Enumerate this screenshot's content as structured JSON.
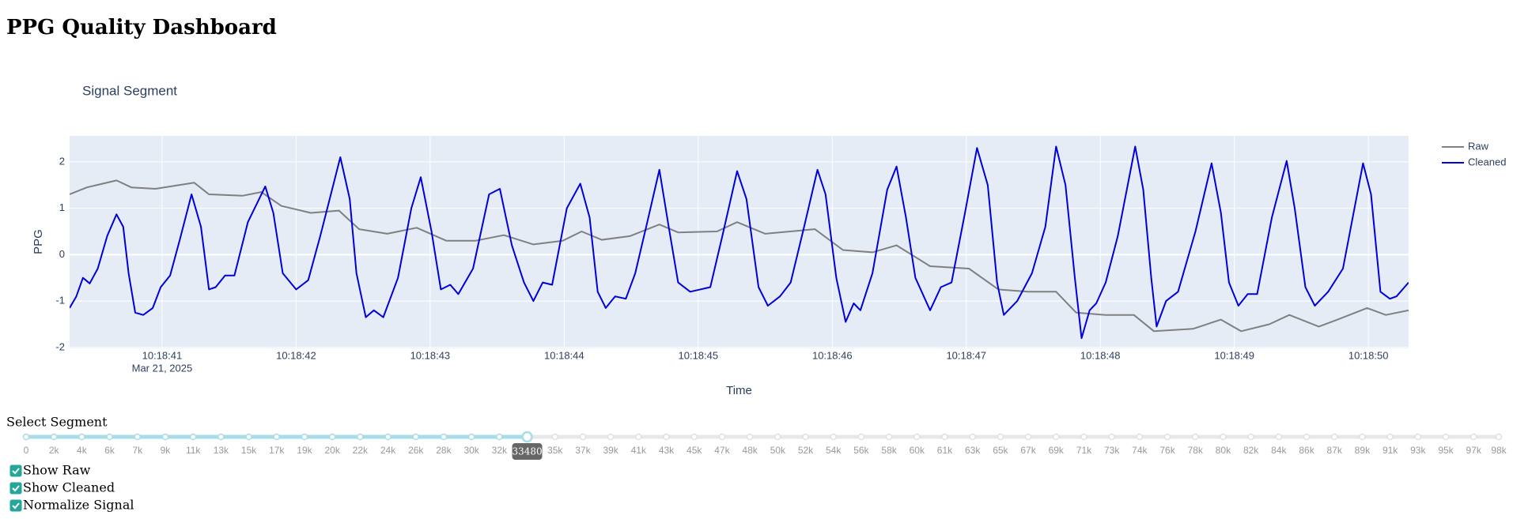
{
  "header": {
    "title": "PPG Quality Dashboard"
  },
  "chart_data": {
    "type": "line",
    "title": "Signal Segment",
    "x_label": "Time",
    "y_label": "PPG",
    "x_date_label": "Mar 21, 2025",
    "xlim": [
      40.31,
      50.3
    ],
    "ylim": [
      -2.02,
      2.56
    ],
    "xticks": [
      {
        "value": 41,
        "label": "10:18:41"
      },
      {
        "value": 42,
        "label": "10:18:42"
      },
      {
        "value": 43,
        "label": "10:18:43"
      },
      {
        "value": 44,
        "label": "10:18:44"
      },
      {
        "value": 45,
        "label": "10:18:45"
      },
      {
        "value": 46,
        "label": "10:18:46"
      },
      {
        "value": 47,
        "label": "10:18:47"
      },
      {
        "value": 48,
        "label": "10:18:48"
      },
      {
        "value": 49,
        "label": "10:18:49"
      },
      {
        "value": 50,
        "label": "10:18:50"
      }
    ],
    "yticks": [
      -2,
      -1,
      0,
      1,
      2
    ],
    "grid": true,
    "legend": "top-right",
    "series": [
      {
        "name": "Raw",
        "color": "#808080",
        "x": [
          40.31,
          40.44,
          40.66,
          40.77,
          40.95,
          41.24,
          41.35,
          41.6,
          41.74,
          41.89,
          42.11,
          42.32,
          42.47,
          42.68,
          42.9,
          43.12,
          43.34,
          43.55,
          43.77,
          43.99,
          44.13,
          44.28,
          44.49,
          44.71,
          44.85,
          45.14,
          45.29,
          45.5,
          45.87,
          46.08,
          46.3,
          46.48,
          46.73,
          47.02,
          47.24,
          47.46,
          47.67,
          47.82,
          48.04,
          48.25,
          48.4,
          48.69,
          48.9,
          49.05,
          49.26,
          49.41,
          49.63,
          49.77,
          49.99,
          50.13,
          50.3
        ],
        "values": [
          1.3,
          1.45,
          1.6,
          1.45,
          1.42,
          1.55,
          1.3,
          1.27,
          1.35,
          1.05,
          0.9,
          0.95,
          0.55,
          0.45,
          0.58,
          0.3,
          0.3,
          0.42,
          0.22,
          0.3,
          0.5,
          0.32,
          0.4,
          0.65,
          0.48,
          0.5,
          0.7,
          0.45,
          0.55,
          0.1,
          0.05,
          0.2,
          -0.25,
          -0.3,
          -0.75,
          -0.8,
          -0.8,
          -1.25,
          -1.3,
          -1.3,
          -1.65,
          -1.6,
          -1.4,
          -1.65,
          -1.5,
          -1.3,
          -1.55,
          -1.4,
          -1.15,
          -1.3,
          -1.2
        ]
      },
      {
        "name": "Cleaned",
        "color": "#0000dd",
        "x": [
          40.31,
          40.36,
          40.41,
          40.46,
          40.52,
          40.59,
          40.66,
          40.71,
          40.75,
          40.8,
          40.86,
          40.93,
          40.99,
          41.06,
          41.13,
          41.22,
          41.29,
          41.35,
          41.4,
          41.47,
          41.54,
          41.64,
          41.77,
          41.83,
          41.9,
          42.0,
          42.09,
          42.18,
          42.33,
          42.4,
          42.45,
          42.52,
          42.58,
          42.65,
          42.76,
          42.86,
          42.93,
          43.01,
          43.08,
          43.15,
          43.21,
          43.32,
          43.44,
          43.52,
          43.61,
          43.7,
          43.77,
          43.84,
          43.91,
          44.02,
          44.12,
          44.19,
          44.25,
          44.31,
          44.38,
          44.46,
          44.53,
          44.62,
          44.71,
          44.78,
          44.85,
          44.94,
          45.09,
          45.18,
          45.29,
          45.36,
          45.45,
          45.52,
          45.61,
          45.69,
          45.79,
          45.89,
          45.95,
          46.03,
          46.1,
          46.16,
          46.21,
          46.3,
          46.41,
          46.48,
          46.55,
          46.62,
          46.73,
          46.81,
          46.89,
          46.99,
          47.08,
          47.16,
          47.23,
          47.28,
          47.38,
          47.49,
          47.59,
          47.67,
          47.74,
          47.81,
          47.86,
          47.92,
          47.97,
          48.04,
          48.13,
          48.26,
          48.32,
          48.38,
          48.42,
          48.49,
          48.58,
          48.71,
          48.83,
          48.9,
          48.96,
          49.03,
          49.1,
          49.17,
          49.28,
          49.39,
          49.45,
          49.53,
          49.6,
          49.7,
          49.81,
          49.96,
          50.02,
          50.09,
          50.16,
          50.21,
          50.3
        ],
        "values": [
          -1.15,
          -0.9,
          -0.5,
          -0.62,
          -0.3,
          0.4,
          0.87,
          0.6,
          -0.4,
          -1.25,
          -1.3,
          -1.15,
          -0.7,
          -0.45,
          0.3,
          1.3,
          0.6,
          -0.75,
          -0.7,
          -0.45,
          -0.45,
          0.7,
          1.47,
          0.9,
          -0.4,
          -0.75,
          -0.55,
          0.4,
          2.1,
          1.2,
          -0.4,
          -1.35,
          -1.2,
          -1.35,
          -0.5,
          1.0,
          1.67,
          0.5,
          -0.75,
          -0.65,
          -0.85,
          -0.3,
          1.3,
          1.42,
          0.2,
          -0.6,
          -1.0,
          -0.6,
          -0.65,
          1.0,
          1.53,
          0.8,
          -0.8,
          -1.15,
          -0.9,
          -0.95,
          -0.4,
          0.7,
          1.83,
          0.6,
          -0.6,
          -0.8,
          -0.7,
          0.4,
          1.8,
          1.2,
          -0.7,
          -1.1,
          -0.9,
          -0.6,
          0.6,
          1.83,
          1.3,
          -0.5,
          -1.45,
          -1.05,
          -1.2,
          -0.4,
          1.4,
          1.9,
          0.8,
          -0.5,
          -1.2,
          -0.7,
          -0.6,
          0.9,
          2.3,
          1.5,
          -0.6,
          -1.3,
          -1.0,
          -0.4,
          0.6,
          2.33,
          1.5,
          -0.5,
          -1.8,
          -1.2,
          -1.05,
          -0.6,
          0.4,
          2.33,
          1.4,
          -0.5,
          -1.55,
          -1.0,
          -0.8,
          0.5,
          1.97,
          0.9,
          -0.6,
          -1.1,
          -0.85,
          -0.85,
          0.8,
          2.02,
          1.0,
          -0.7,
          -1.1,
          -0.8,
          -0.3,
          1.97,
          1.3,
          -0.8,
          -0.95,
          -0.9,
          -0.6
        ]
      }
    ]
  },
  "slider": {
    "label": "Select Segment",
    "value": 33480,
    "marks": [
      {
        "value": 0,
        "label": "0"
      },
      {
        "value": 1860,
        "label": "2k"
      },
      {
        "value": 3720,
        "label": "4k"
      },
      {
        "value": 5580,
        "label": "6k"
      },
      {
        "value": 7440,
        "label": "7k"
      },
      {
        "value": 9300,
        "label": "9k"
      },
      {
        "value": 11160,
        "label": "11k"
      },
      {
        "value": 13020,
        "label": "13k"
      },
      {
        "value": 14880,
        "label": "15k"
      },
      {
        "value": 16740,
        "label": "17k"
      },
      {
        "value": 18600,
        "label": "19k"
      },
      {
        "value": 20460,
        "label": "20k"
      },
      {
        "value": 22320,
        "label": "22k"
      },
      {
        "value": 24180,
        "label": "24k"
      },
      {
        "value": 26040,
        "label": "26k"
      },
      {
        "value": 27900,
        "label": "28k"
      },
      {
        "value": 29760,
        "label": "30k"
      },
      {
        "value": 31620,
        "label": "32k"
      },
      {
        "value": 35340,
        "label": "35k"
      },
      {
        "value": 37200,
        "label": "37k"
      },
      {
        "value": 39060,
        "label": "39k"
      },
      {
        "value": 40920,
        "label": "41k"
      },
      {
        "value": 42780,
        "label": "43k"
      },
      {
        "value": 44640,
        "label": "45k"
      },
      {
        "value": 46500,
        "label": "47k"
      },
      {
        "value": 48360,
        "label": "48k"
      },
      {
        "value": 50220,
        "label": "50k"
      },
      {
        "value": 52080,
        "label": "52k"
      },
      {
        "value": 53940,
        "label": "54k"
      },
      {
        "value": 55800,
        "label": "56k"
      },
      {
        "value": 57660,
        "label": "58k"
      },
      {
        "value": 59520,
        "label": "60k"
      },
      {
        "value": 61380,
        "label": "61k"
      },
      {
        "value": 63240,
        "label": "63k"
      },
      {
        "value": 65100,
        "label": "65k"
      },
      {
        "value": 66960,
        "label": "67k"
      },
      {
        "value": 68820,
        "label": "69k"
      },
      {
        "value": 70680,
        "label": "71k"
      },
      {
        "value": 72540,
        "label": "73k"
      },
      {
        "value": 74400,
        "label": "74k"
      },
      {
        "value": 76260,
        "label": "76k"
      },
      {
        "value": 78120,
        "label": "78k"
      },
      {
        "value": 79980,
        "label": "80k"
      },
      {
        "value": 81840,
        "label": "82k"
      },
      {
        "value": 83700,
        "label": "84k"
      },
      {
        "value": 85560,
        "label": "86k"
      },
      {
        "value": 87420,
        "label": "87k"
      },
      {
        "value": 89280,
        "label": "89k"
      },
      {
        "value": 91140,
        "label": "91k"
      },
      {
        "value": 93000,
        "label": "93k"
      },
      {
        "value": 94860,
        "label": "95k"
      },
      {
        "value": 96720,
        "label": "97k"
      },
      {
        "value": 98400,
        "label": "98k"
      }
    ]
  },
  "checkboxes": [
    {
      "label": "Show Raw",
      "checked": true
    },
    {
      "label": "Show Cleaned",
      "checked": true
    },
    {
      "label": "Normalize Signal",
      "checked": true
    }
  ]
}
